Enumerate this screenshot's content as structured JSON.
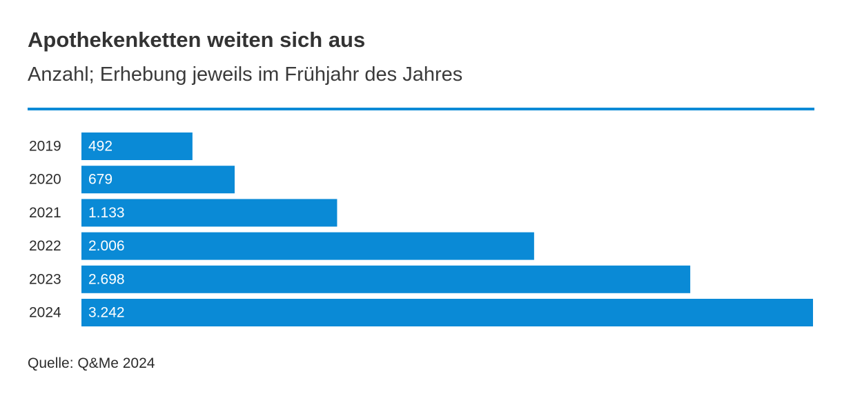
{
  "chart_data": {
    "type": "bar",
    "orientation": "horizontal",
    "title": "Apothekenketten weiten sich aus",
    "subtitle": "Anzahl; Erhebung jeweils im Frühjahr des Jahres",
    "categories": [
      "2019",
      "2020",
      "2021",
      "2022",
      "2023",
      "2024"
    ],
    "values": [
      492,
      679,
      1133,
      2006,
      2698,
      3242
    ],
    "value_labels": [
      "492",
      "679",
      "1.133",
      "2.006",
      "2.698",
      "3.242"
    ],
    "xlim": [
      0,
      3242
    ],
    "xlabel": "",
    "ylabel": "",
    "grid": false,
    "bar_color": "#0a8ad6",
    "source": "Quelle: Q&Me 2024"
  },
  "colors": {
    "accent": "#0a8ad6",
    "label_on_bar": "#ffffff",
    "text": "#2b2b2b"
  }
}
